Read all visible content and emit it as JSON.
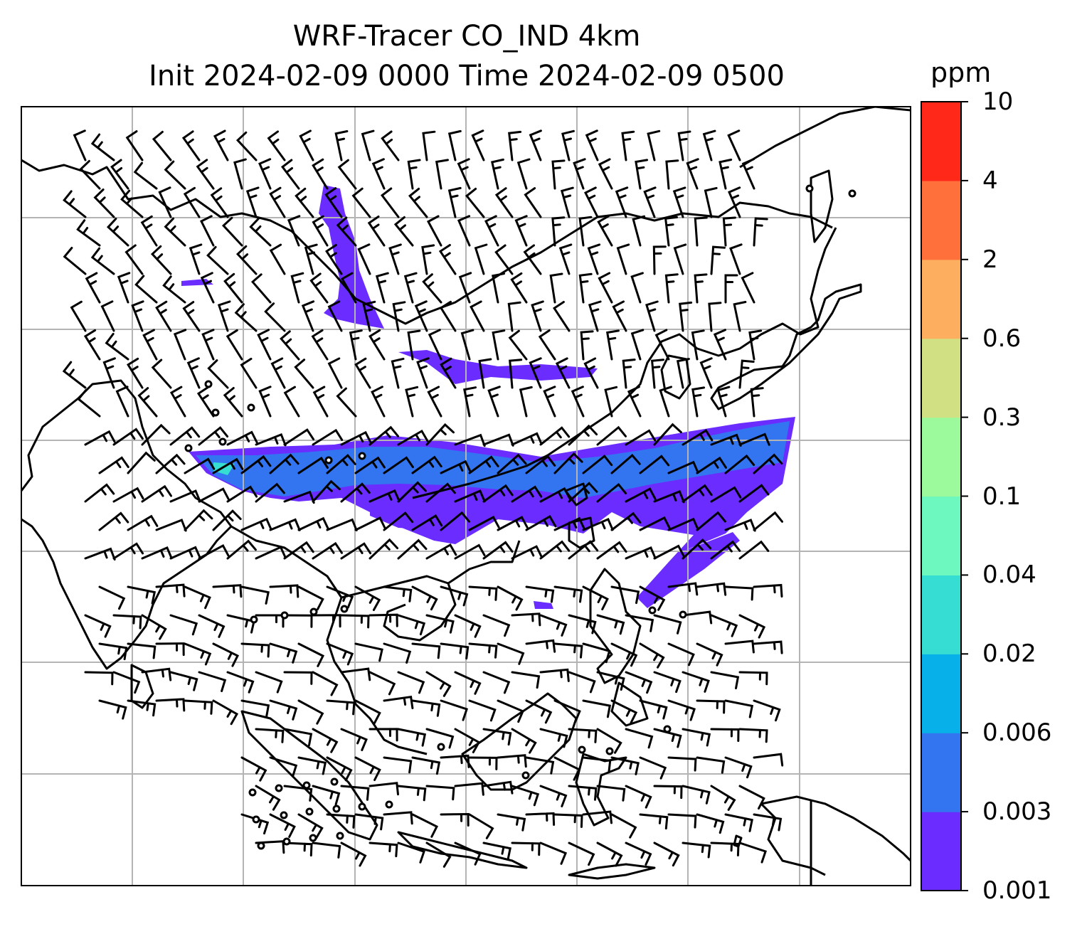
{
  "title_line1": "WRF-Tracer CO_IND 4km",
  "title_line2": "Init 2024-02-09 0000 Time 2024-02-09 0500",
  "colorbar": {
    "unit": "ppm",
    "levels": [
      "0.001",
      "0.003",
      "0.006",
      "0.02",
      "0.04",
      "0.1",
      "0.3",
      "0.6",
      "2",
      "4",
      "10"
    ],
    "colors": [
      "#6a2cff",
      "#3375f0",
      "#08b0ea",
      "#35ddd2",
      "#6cf8bf",
      "#9dfa9c",
      "#d1e083",
      "#fdae5f",
      "#ff703b",
      "#ff2819"
    ]
  },
  "map": {
    "graticule_color": "#b4b4b4",
    "coastline_color": "#000000"
  },
  "wind_calm_markers": "circle",
  "wind_barbs": "black"
}
